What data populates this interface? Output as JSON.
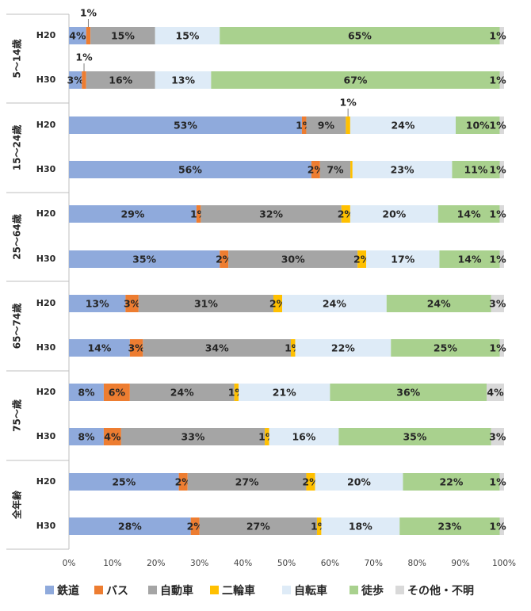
{
  "chart_data": {
    "type": "bar",
    "orientation": "horizontal",
    "stacked": "100%",
    "title": "",
    "xlabel": "",
    "ylabel": "",
    "xlim": [
      0,
      100
    ],
    "x_ticks": [
      "0%",
      "10%",
      "20%",
      "30%",
      "40%",
      "50%",
      "60%",
      "70%",
      "80%",
      "90%",
      "100%"
    ],
    "grid": false,
    "legend_position": "bottom",
    "modes": [
      {
        "name": "鉄道",
        "color": "#8faadc"
      },
      {
        "name": "バス",
        "color": "#ed7d31"
      },
      {
        "name": "自動車",
        "color": "#a5a5a5"
      },
      {
        "name": "二輪車",
        "color": "#ffc000"
      },
      {
        "name": "自転車",
        "color": "#deebf7"
      },
      {
        "name": "徒歩",
        "color": "#a9d18e"
      },
      {
        "name": "その他・不明",
        "color": "#d9d9d9"
      }
    ],
    "groups": [
      {
        "name": "5～14歳",
        "rows": [
          {
            "year": "H20",
            "values": [
              4,
              1,
              15,
              0,
              15,
              65,
              1
            ],
            "labels": [
              "4%",
              "1%",
              "15%",
              "",
              "15%",
              "65%",
              "1%"
            ]
          },
          {
            "year": "H30",
            "values": [
              3,
              1,
              16,
              0,
              13,
              67,
              1
            ],
            "labels": [
              "3%",
              "1%",
              "16%",
              "",
              "13%",
              "67%",
              "1%"
            ]
          }
        ]
      },
      {
        "name": "15～24歳",
        "rows": [
          {
            "year": "H20",
            "values": [
              53,
              1,
              9,
              1,
              24,
              10,
              1
            ],
            "labels": [
              "53%",
              "1%",
              "9%",
              "1%",
              "24%",
              "10%",
              "1%"
            ]
          },
          {
            "year": "H30",
            "values": [
              56,
              2,
              7,
              0.5,
              23,
              11,
              1
            ],
            "labels": [
              "56%",
              "2%",
              "7%",
              "",
              "23%",
              "11%",
              "1%"
            ]
          }
        ]
      },
      {
        "name": "25～64歳",
        "rows": [
          {
            "year": "H20",
            "values": [
              29,
              1,
              32,
              2,
              20,
              14,
              1
            ],
            "labels": [
              "29%",
              "1%",
              "32%",
              "2%",
              "20%",
              "14%",
              "1%"
            ]
          },
          {
            "year": "H30",
            "values": [
              35,
              2,
              30,
              2,
              17,
              14,
              1
            ],
            "labels": [
              "35%",
              "2%",
              "30%",
              "2%",
              "17%",
              "14%",
              "1%"
            ]
          }
        ]
      },
      {
        "name": "65～74歳",
        "rows": [
          {
            "year": "H20",
            "values": [
              13,
              3,
              31,
              2,
              24,
              24,
              3
            ],
            "labels": [
              "13%",
              "3%",
              "31%",
              "2%",
              "24%",
              "24%",
              "3%"
            ]
          },
          {
            "year": "H30",
            "values": [
              14,
              3,
              34,
              1,
              22,
              25,
              1
            ],
            "labels": [
              "14%",
              "3%",
              "34%",
              "1%",
              "22%",
              "25%",
              "1%"
            ]
          }
        ]
      },
      {
        "name": "75～歳",
        "rows": [
          {
            "year": "H20",
            "values": [
              8,
              6,
              24,
              1,
              21,
              36,
              4
            ],
            "labels": [
              "8%",
              "6%",
              "24%",
              "1%",
              "21%",
              "36%",
              "4%"
            ]
          },
          {
            "year": "H30",
            "values": [
              8,
              4,
              33,
              1,
              16,
              35,
              3
            ],
            "labels": [
              "8%",
              "4%",
              "33%",
              "1%",
              "16%",
              "35%",
              "3%"
            ]
          }
        ]
      },
      {
        "name": "全年齢",
        "rows": [
          {
            "year": "H20",
            "values": [
              25,
              2,
              27,
              2,
              20,
              22,
              1
            ],
            "labels": [
              "25%",
              "2%",
              "27%",
              "2%",
              "20%",
              "22%",
              "1%"
            ]
          },
          {
            "year": "H30",
            "values": [
              28,
              2,
              27,
              1,
              18,
              23,
              1
            ],
            "labels": [
              "28%",
              "2%",
              "27%",
              "1%",
              "18%",
              "23%",
              "1%"
            ]
          }
        ]
      }
    ],
    "callouts": [
      {
        "group": 0,
        "row": 0,
        "segment": 1,
        "text": "1%"
      },
      {
        "group": 0,
        "row": 1,
        "segment": 1,
        "text": "1%"
      },
      {
        "group": 1,
        "row": 0,
        "segment": 3,
        "text": "1%"
      }
    ]
  }
}
